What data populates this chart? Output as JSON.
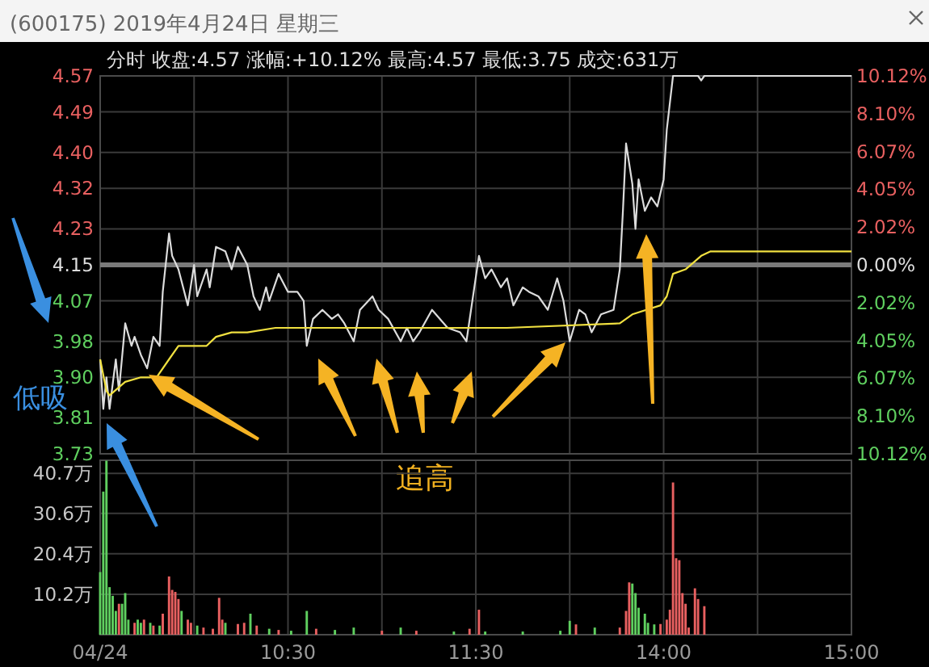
{
  "chart_data": [
    {
      "type": "line",
      "title": "(600175) 2019年4月24日 星期三",
      "subtitle": "分时  收盘:4.57  涨幅:+10.12%  最高:4.57  最低:3.75  成交:631万",
      "annotations": [
        "低吸",
        "追高"
      ],
      "categories": [
        null,
        null,
        null,
        null,
        null,
        null,
        null,
        null,
        null,
        null,
        null,
        null,
        null,
        null,
        null,
        null,
        null,
        null,
        null,
        null,
        null,
        null,
        null,
        null,
        null,
        null,
        null,
        null,
        null,
        null,
        null,
        null,
        null,
        null,
        null,
        null,
        null,
        null,
        null,
        null,
        null,
        null,
        null,
        null,
        null,
        null,
        null,
        null,
        null,
        null,
        null,
        null,
        null,
        null,
        null,
        null,
        null,
        null,
        null,
        null,
        null,
        null,
        null,
        null,
        null,
        null,
        null,
        null,
        null,
        null,
        null,
        null,
        null,
        null,
        null,
        null,
        null,
        null,
        null,
        null,
        null,
        null,
        null,
        null,
        null,
        null,
        null,
        null,
        null,
        null,
        null,
        null,
        null,
        null,
        null,
        null,
        null,
        null,
        null,
        null,
        null,
        null,
        null,
        null,
        null,
        null,
        null,
        null,
        null,
        null,
        null,
        null,
        null,
        null,
        null,
        null,
        null,
        null,
        null,
        null,
        null,
        null,
        null,
        null,
        null,
        null,
        null,
        null,
        null,
        null,
        null,
        null,
        null,
        null,
        null,
        null,
        null,
        null,
        null,
        null,
        null,
        null,
        null,
        null,
        null,
        null,
        null,
        null,
        null,
        null,
        null,
        null,
        null,
        null,
        null,
        null,
        null,
        null,
        null,
        null,
        null,
        null,
        null,
        null,
        null,
        null,
        null,
        null,
        null,
        null,
        null,
        null,
        null,
        null,
        null,
        null,
        null,
        null,
        null,
        null,
        null,
        null,
        null,
        null,
        null,
        null,
        null,
        null,
        null,
        null,
        null,
        null,
        null,
        null,
        null,
        null,
        null,
        null,
        null,
        null,
        null,
        null,
        null,
        null,
        null,
        null,
        null,
        null,
        null,
        null,
        null,
        null,
        null,
        null,
        null,
        null,
        null,
        null,
        null,
        null,
        null,
        null,
        null,
        null,
        null,
        null,
        null,
        null,
        null,
        null,
        null,
        null,
        null,
        null,
        null,
        null,
        null,
        null,
        null,
        null,
        null
      ],
      "ylim": [
        3.73,
        4.57
      ],
      "yticks": [
        3.73,
        3.81,
        {
          "value": 3.9,
          "label": "3.90"
        },
        3.98,
        4.07,
        4.15,
        4.23,
        4.32,
        {
          "value": 4.4,
          "label": "4.40"
        },
        4.49,
        4.57
      ],
      "y2lim": [
        -10.12,
        10.12
      ],
      "y2ticks": [
        {
          "value": -10.12,
          "label": "10.12%"
        },
        {
          "value": -8.1,
          "label": "8.10%"
        },
        {
          "value": -6.07,
          "label": "6.07%"
        },
        {
          "value": -4.05,
          "label": "4.05%"
        },
        {
          "value": -2.02,
          "label": "2.02%"
        },
        {
          "value": 0,
          "label": "0.00%"
        },
        {
          "value": 2.02,
          "label": "2.02%"
        },
        {
          "value": 4.05,
          "label": "4.05%"
        },
        {
          "value": 6.07,
          "label": "6.07%"
        },
        {
          "value": 8.1,
          "label": "8.10%"
        },
        {
          "value": 10.12,
          "label": "10.12%"
        }
      ],
      "ref_lines": [
        {
          "axis": "y",
          "value": 4.15,
          "color": "#7a7a7a"
        }
      ],
      "grid": true,
      "tick_labels": "y",
      "series": [
        {
          "color": "#dcdcdc",
          "values": [
            3.94,
            3.83,
            3.9,
            3.83,
            null,
            3.94,
            3.87,
            null,
            4.02,
            null,
            3.97,
            3.99,
            null,
            3.95,
            null,
            3.92,
            null,
            3.99,
            null,
            3.97,
            4.09,
            null,
            4.22,
            4.17,
            null,
            4.14,
            null,
            null,
            4.06,
            null,
            4.15,
            4.08,
            null,
            null,
            4.14,
            4.1,
            null,
            4.19,
            null,
            null,
            4.18,
            null,
            4.14,
            null,
            4.19,
            null,
            null,
            4.15,
            null,
            4.08,
            null,
            4.05,
            null,
            4.1,
            4.07,
            null,
            null,
            4.13,
            null,
            null,
            4.09,
            null,
            null,
            4.09,
            null,
            4.07,
            3.97,
            null,
            4.03,
            null,
            null,
            4.05,
            null,
            null,
            4.03,
            null,
            4.04,
            null,
            4.02,
            null,
            null,
            3.98,
            null,
            4.05,
            null,
            null,
            null,
            4.08,
            null,
            4.05,
            null,
            null,
            4.03,
            null,
            null,
            null,
            3.98,
            null,
            4.01,
            null,
            3.98,
            null,
            4.0,
            null,
            null,
            null,
            4.05,
            null,
            null,
            null,
            null,
            4.01,
            null,
            null,
            null,
            4.0,
            null,
            3.98,
            null,
            null,
            null,
            4.17,
            null,
            4.12,
            null,
            4.14,
            null,
            null,
            4.1,
            null,
            4.12,
            null,
            4.06,
            null,
            null,
            4.1,
            null,
            4.09,
            null,
            null,
            4.08,
            null,
            null,
            4.05,
            null,
            null,
            4.12,
            null,
            4.07,
            null,
            3.98,
            null,
            null,
            4.05,
            null,
            4.04,
            null,
            4.0,
            null,
            null,
            4.04,
            null,
            null,
            null,
            4.05,
            null,
            4.14,
            4.27,
            4.42,
            null,
            4.33,
            4.23,
            4.34,
            null,
            4.27,
            null,
            4.3,
            null,
            4.28,
            null,
            4.34,
            4.45,
            null,
            4.57,
            null,
            null,
            null,
            null,
            null,
            null,
            null,
            4.57,
            4.56,
            4.57,
            null,
            null,
            null,
            null,
            null,
            null,
            null,
            null,
            null,
            null,
            null,
            null,
            null,
            null,
            null,
            null,
            4.57,
            null,
            null,
            null,
            null,
            null,
            null,
            null,
            null,
            null,
            null,
            null,
            null,
            null,
            null,
            null,
            null,
            null,
            null,
            null,
            null,
            null,
            null,
            null,
            null,
            null,
            null,
            null,
            null,
            null,
            4.57
          ]
        },
        {
          "color": "#f0e040",
          "values": [
            3.94,
            null,
            3.87,
            3.86,
            null,
            null,
            null,
            null,
            3.89,
            null,
            null,
            null,
            null,
            3.9,
            null,
            null,
            null,
            null,
            3.9,
            null,
            null,
            null,
            3.94,
            null,
            null,
            3.97,
            null,
            null,
            3.97,
            null,
            null,
            null,
            null,
            null,
            3.97,
            null,
            null,
            3.99,
            null,
            null,
            null,
            null,
            4.0,
            null,
            null,
            null,
            null,
            4.0,
            null,
            null,
            null,
            null,
            null,
            null,
            null,
            null,
            4.01,
            null,
            null,
            null,
            null,
            null,
            null,
            null,
            null,
            null,
            null,
            null,
            null,
            null,
            null,
            null,
            4.01,
            null,
            null,
            null,
            null,
            null,
            null,
            null,
            null,
            null,
            null,
            null,
            null,
            null,
            null,
            null,
            null,
            null,
            null,
            null,
            null,
            null,
            null,
            null,
            null,
            null,
            null,
            null,
            null,
            null,
            null,
            null,
            null,
            null,
            null,
            null,
            null,
            null,
            null,
            null,
            null,
            null,
            null,
            null,
            null,
            null,
            null,
            null,
            4.01,
            null,
            null,
            null,
            null,
            null,
            null,
            null,
            null,
            null,
            4.01,
            null,
            null,
            null,
            null,
            null,
            null,
            null,
            null,
            null,
            null,
            null,
            null,
            null,
            null,
            null,
            null,
            null,
            null,
            null,
            null,
            null,
            null,
            null,
            null,
            null,
            null,
            null,
            null,
            null,
            null,
            null,
            null,
            null,
            null,
            null,
            4.02,
            null,
            null,
            null,
            4.04,
            null,
            null,
            null,
            null,
            null,
            null,
            null,
            null,
            4.06,
            null,
            4.08,
            null,
            4.13,
            null,
            null,
            null,
            4.14,
            null,
            null,
            null,
            null,
            4.17,
            null,
            null,
            4.18,
            null,
            null,
            null,
            null,
            null,
            null,
            null,
            null,
            null,
            null,
            null,
            4.18,
            null,
            null,
            null,
            null,
            null,
            null,
            null,
            null,
            null,
            null,
            null,
            null,
            null,
            null,
            null,
            null,
            null,
            null,
            null,
            null,
            null,
            null,
            null,
            4.18,
            null,
            null,
            null,
            null,
            null,
            null,
            null,
            null,
            4.18
          ]
        }
      ]
    },
    {
      "type": "bar",
      "categories": [
        "04/24",
        null,
        null,
        null,
        null,
        null,
        null,
        null,
        null,
        null,
        null,
        null,
        null,
        null,
        null,
        null,
        null,
        null,
        null,
        null,
        null,
        null,
        null,
        null,
        null,
        null,
        null,
        null,
        null,
        null,
        null,
        null,
        null,
        null,
        null,
        null,
        null,
        null,
        null,
        null,
        null,
        null,
        null,
        null,
        null,
        null,
        null,
        null,
        null,
        null,
        null,
        null,
        null,
        null,
        null,
        null,
        null,
        null,
        null,
        null,
        "10:30",
        null,
        null,
        null,
        null,
        null,
        null,
        null,
        null,
        null,
        null,
        null,
        null,
        null,
        null,
        null,
        null,
        null,
        null,
        null,
        null,
        null,
        null,
        null,
        null,
        null,
        null,
        null,
        null,
        null,
        null,
        null,
        null,
        null,
        null,
        null,
        null,
        null,
        null,
        null,
        null,
        null,
        null,
        null,
        null,
        null,
        null,
        null,
        null,
        null,
        null,
        null,
        null,
        null,
        null,
        null,
        null,
        null,
        null,
        null,
        "11:30",
        null,
        null,
        null,
        null,
        null,
        null,
        null,
        null,
        null,
        null,
        null,
        null,
        null,
        null,
        null,
        null,
        null,
        null,
        null,
        null,
        null,
        null,
        null,
        null,
        null,
        null,
        null,
        null,
        null,
        null,
        null,
        null,
        null,
        null,
        null,
        null,
        null,
        null,
        null,
        null,
        null,
        null,
        null,
        null,
        null,
        null,
        null,
        null,
        null,
        null,
        null,
        null,
        null,
        null,
        null,
        null,
        null,
        null,
        null,
        "14:00",
        null,
        null,
        null,
        null,
        null,
        null,
        null,
        null,
        null,
        null,
        null,
        null,
        null,
        null,
        null,
        null,
        null,
        null,
        null,
        null,
        null,
        null,
        null,
        null,
        null,
        null,
        null,
        null,
        null,
        null,
        null,
        null,
        null,
        null,
        null,
        null,
        null,
        null,
        null,
        null,
        null,
        null,
        null,
        null,
        null,
        null,
        null,
        null,
        null,
        null,
        null,
        null,
        null,
        null,
        null,
        null,
        null,
        null,
        null,
        "15:00"
      ],
      "ylim": [
        0,
        44
      ],
      "yticks": [
        {
          "value": 10.2,
          "label": "10.2万"
        },
        {
          "value": 20.4,
          "label": "20.4万"
        },
        {
          "value": 30.6,
          "label": "30.6万"
        },
        {
          "value": 40.7,
          "label": "40.7万"
        }
      ],
      "grid": true,
      "values": [
        15.8,
        36.1,
        43.9,
        12.0,
        9.8,
        6.0,
        7.8,
        7.8,
        10.5,
        3.8,
        null,
        3.0,
        3.8,
        3.0,
        3.8,
        null,
        3.0,
        2.3,
        null,
        2.3,
        5.3,
        null,
        14.7,
        11.3,
        10.8,
        9.0,
        6.0,
        null,
        3.8,
        3.0,
        null,
        2.3,
        null,
        1.8,
        null,
        null,
        1.5,
        null,
        9.3,
        3.8,
        3.0,
        null,
        null,
        null,
        2.7,
        null,
        3.0,
        null,
        5.3,
        null,
        2.3,
        null,
        null,
        null,
        1.5,
        null,
        null,
        1.2,
        null,
        null,
        null,
        1.0,
        null,
        null,
        null,
        null,
        6.0,
        null,
        null,
        1.5,
        null,
        null,
        null,
        null,
        null,
        1.2,
        null,
        null,
        null,
        null,
        null,
        1.8,
        null,
        null,
        null,
        null,
        null,
        null,
        null,
        null,
        1.0,
        null,
        null,
        null,
        null,
        null,
        1.8,
        null,
        null,
        null,
        null,
        1.0,
        null,
        null,
        null,
        null,
        null,
        null,
        null,
        null,
        null,
        null,
        null,
        0.8,
        null,
        null,
        null,
        null,
        1.5,
        null,
        null,
        6.3,
        null,
        0.8,
        null,
        null,
        null,
        null,
        null,
        null,
        null,
        null,
        null,
        null,
        null,
        0.8,
        null,
        null,
        null,
        null,
        null,
        null,
        null,
        null,
        null,
        null,
        null,
        1.0,
        null,
        null,
        3.5,
        null,
        2.6,
        null,
        null,
        null,
        null,
        null,
        1.8,
        null,
        null,
        null,
        null,
        null,
        null,
        null,
        1.8,
        null,
        6.0,
        13.2,
        12.9,
        10.5,
        6.8,
        null,
        5.3,
        3.0,
        null,
        2.6,
        null,
        2.7,
        null,
        3.8,
        6.3,
        38.4,
        19.3,
        18.8,
        10.5,
        7.8,
        1.8,
        null,
        11.7,
        9.0,
        null,
        7.2,
        null,
        null,
        null,
        null,
        null,
        null,
        null,
        null,
        null,
        null,
        null,
        null,
        null,
        null,
        null,
        null,
        null,
        null,
        null,
        null,
        null,
        null,
        null,
        null,
        null,
        null,
        null,
        null,
        null,
        null,
        null,
        null,
        null,
        null,
        null,
        null,
        null,
        null,
        null,
        null,
        null,
        null,
        null,
        null,
        null,
        null,
        null
      ],
      "colors": [
        "#5fcf5f",
        "#5fcf5f",
        "#5fcf5f",
        "#5fcf5f",
        "#5fcf5f",
        "#5fcf5f",
        "#e86060",
        "#5fcf5f",
        "#5fcf5f",
        "#5fcf5f",
        null,
        "#e86060",
        "#5fcf5f",
        "#5fcf5f",
        "#e86060",
        null,
        "#5fcf5f",
        "#e86060",
        null,
        "#5fcf5f",
        "#e86060",
        null,
        "#e86060",
        "#e86060",
        "#e86060",
        "#e86060",
        "#5fcf5f",
        null,
        "#e86060",
        "#e86060",
        null,
        "#5fcf5f",
        null,
        "#e86060",
        null,
        null,
        "#e86060",
        null,
        "#e86060",
        "#e86060",
        "#5fcf5f",
        null,
        null,
        null,
        "#e86060",
        null,
        "#e86060",
        null,
        "#5fcf5f",
        null,
        "#e86060",
        null,
        null,
        null,
        "#5fcf5f",
        null,
        null,
        "#e86060",
        null,
        null,
        null,
        "#5fcf5f",
        null,
        null,
        null,
        null,
        "#5fcf5f",
        null,
        null,
        "#e86060",
        null,
        null,
        null,
        null,
        null,
        "#5fcf5f",
        null,
        null,
        null,
        null,
        null,
        "#5fcf5f",
        null,
        null,
        null,
        null,
        null,
        null,
        null,
        null,
        "#e86060",
        null,
        null,
        null,
        null,
        null,
        "#5fcf5f",
        null,
        null,
        null,
        null,
        "#e86060",
        null,
        null,
        null,
        null,
        null,
        null,
        null,
        null,
        null,
        null,
        null,
        "#5fcf5f",
        null,
        null,
        null,
        null,
        "#e86060",
        null,
        null,
        "#e86060",
        null,
        "#5fcf5f",
        null,
        null,
        null,
        null,
        null,
        null,
        null,
        null,
        null,
        null,
        null,
        "#5fcf5f",
        null,
        null,
        null,
        null,
        null,
        null,
        null,
        null,
        null,
        null,
        null,
        "#5fcf5f",
        null,
        null,
        "#5fcf5f",
        null,
        "#e86060",
        null,
        null,
        null,
        null,
        null,
        "#5fcf5f",
        null,
        null,
        null,
        null,
        null,
        null,
        null,
        "#e86060",
        null,
        "#e86060",
        "#e86060",
        "#5fcf5f",
        "#5fcf5f",
        "#5fcf5f",
        null,
        "#5fcf5f",
        "#5fcf5f",
        null,
        "#5fcf5f",
        null,
        "#e86060",
        null,
        "#e86060",
        "#e86060",
        "#e86060",
        "#e86060",
        "#e86060",
        "#e86060",
        "#e86060",
        "#e86060",
        null,
        "#e86060",
        "#e86060",
        null,
        "#e86060",
        null,
        null,
        null,
        null,
        null,
        null,
        null,
        null,
        null,
        null,
        null,
        null,
        null,
        null,
        null,
        null,
        null,
        null,
        null,
        null,
        null,
        null,
        null,
        null,
        null,
        null,
        null,
        null,
        null,
        null,
        null,
        null,
        null,
        null,
        null,
        null,
        null,
        null,
        null,
        null,
        null,
        null,
        null,
        null,
        null,
        null,
        null
      ]
    }
  ]
}
